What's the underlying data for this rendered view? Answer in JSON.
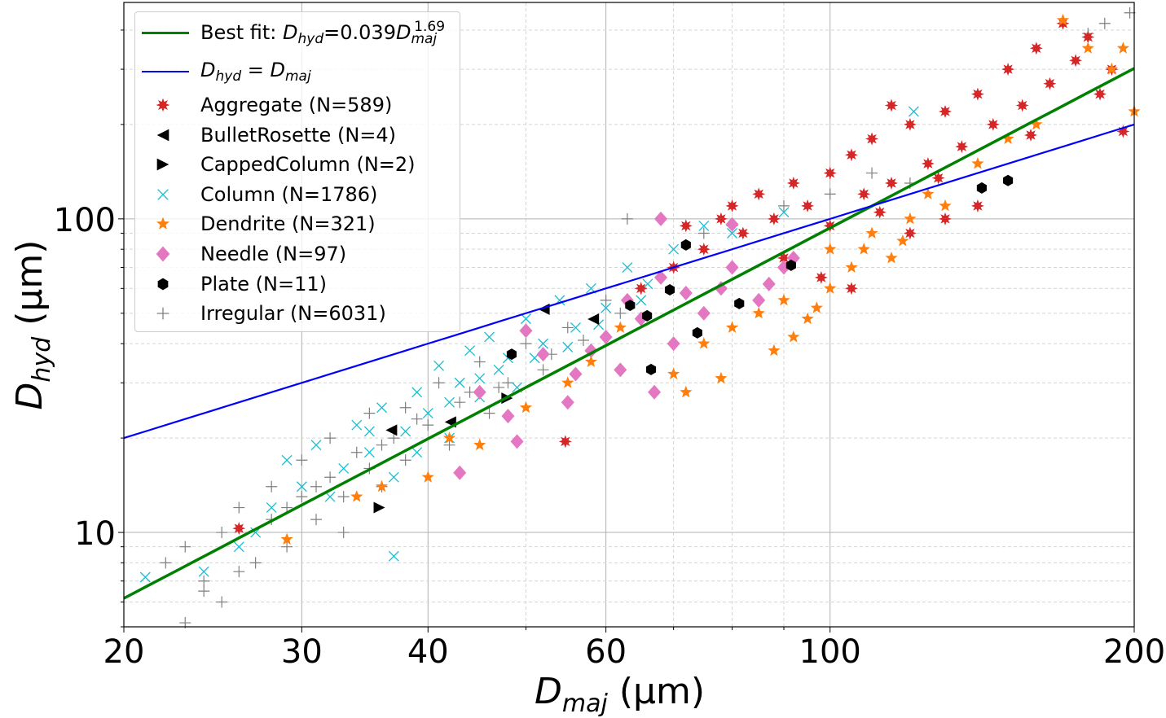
{
  "chart_data": {
    "type": "scatter",
    "xlabel": {
      "main": "D",
      "sub": "maj",
      "unit": "(μm)"
    },
    "ylabel": {
      "main": "D",
      "sub": "hyd",
      "unit": "(μm)"
    },
    "xscale": "log",
    "yscale": "log",
    "xlim": [
      20,
      200
    ],
    "ylim": [
      5,
      490
    ],
    "xticks": [
      20,
      30,
      40,
      60,
      100,
      200
    ],
    "xtick_labels": [
      "20",
      "30",
      "40",
      "60",
      "100",
      "200"
    ],
    "yticks": [
      10,
      100
    ],
    "ytick_labels": [
      "10",
      "100"
    ],
    "grid": true,
    "legend_placement": "top-left",
    "lines": [
      {
        "name": "best_fit",
        "label_prefix": "Best fit: ",
        "label_D": "D",
        "label_hyd": "hyd",
        "label_eq": "=0.039",
        "label_D2": "D",
        "label_maj": "maj",
        "label_exp": "1.69",
        "coef": 0.039,
        "exponent": 1.69,
        "color": "#008000"
      },
      {
        "name": "identity",
        "label_D": "D",
        "label_hyd": "hyd",
        "label_eq": " = ",
        "label_D2": "D",
        "label_maj": "maj",
        "coef": 1,
        "exponent": 1,
        "color": "#0000ff"
      }
    ],
    "series": [
      {
        "name": "Irregular (N=6031)",
        "marker": "plus",
        "color": "#7f7f7f",
        "points": [
          [
            22,
            8
          ],
          [
            23,
            9
          ],
          [
            23,
            5.15
          ],
          [
            24,
            7
          ],
          [
            25,
            10
          ],
          [
            25,
            6
          ],
          [
            26,
            12
          ],
          [
            27,
            8
          ],
          [
            28,
            11
          ],
          [
            28,
            14
          ],
          [
            29,
            9
          ],
          [
            30,
            13
          ],
          [
            30,
            17
          ],
          [
            31,
            11
          ],
          [
            32,
            15
          ],
          [
            32,
            20
          ],
          [
            33,
            13
          ],
          [
            34,
            18
          ],
          [
            35,
            16
          ],
          [
            35,
            24
          ],
          [
            36,
            14
          ],
          [
            37,
            20
          ],
          [
            38,
            25
          ],
          [
            38,
            17
          ],
          [
            40,
            22
          ],
          [
            41,
            30
          ],
          [
            42,
            19
          ],
          [
            44,
            28
          ],
          [
            45,
            35
          ],
          [
            46,
            24
          ],
          [
            48,
            30
          ],
          [
            50,
            40
          ],
          [
            52,
            33
          ],
          [
            55,
            45
          ],
          [
            58,
            38
          ],
          [
            60,
            55
          ],
          [
            62,
            50
          ],
          [
            65,
            60
          ],
          [
            70,
            70
          ],
          [
            75,
            90
          ],
          [
            80,
            95
          ],
          [
            90,
            110
          ],
          [
            100,
            120
          ],
          [
            110,
            140
          ],
          [
            120,
            130
          ],
          [
            187,
            420
          ],
          [
            198,
            454
          ],
          [
            180,
            390
          ],
          [
            24,
            6.5
          ],
          [
            26,
            7.5
          ],
          [
            29,
            12
          ],
          [
            31,
            14
          ],
          [
            33,
            10
          ],
          [
            36,
            19
          ],
          [
            39,
            23
          ],
          [
            43,
            26
          ],
          [
            47,
            29
          ],
          [
            53,
            37
          ],
          [
            57,
            41
          ],
          [
            63,
            100
          ]
        ]
      },
      {
        "name": "Column (N=1786)",
        "marker": "x",
        "color": "#17becf",
        "points": [
          [
            21,
            7.2
          ],
          [
            24,
            7.5
          ],
          [
            26,
            9
          ],
          [
            27,
            10
          ],
          [
            28,
            12
          ],
          [
            29,
            17
          ],
          [
            30,
            14
          ],
          [
            31,
            19
          ],
          [
            32,
            13
          ],
          [
            33,
            16
          ],
          [
            34,
            22
          ],
          [
            35,
            18
          ],
          [
            36,
            25
          ],
          [
            37,
            15
          ],
          [
            37,
            8.4
          ],
          [
            38,
            21
          ],
          [
            39,
            28
          ],
          [
            40,
            24
          ],
          [
            41,
            34
          ],
          [
            42,
            20
          ],
          [
            43,
            30
          ],
          [
            44,
            38
          ],
          [
            45,
            27
          ],
          [
            46,
            42
          ],
          [
            47,
            33
          ],
          [
            48,
            36
          ],
          [
            50,
            48
          ],
          [
            52,
            40
          ],
          [
            54,
            55
          ],
          [
            56,
            45
          ],
          [
            58,
            60
          ],
          [
            60,
            52
          ],
          [
            63,
            70
          ],
          [
            66,
            62
          ],
          [
            70,
            80
          ],
          [
            75,
            95
          ],
          [
            80,
            90
          ],
          [
            90,
            105
          ],
          [
            121,
            220
          ],
          [
            35,
            21
          ],
          [
            39,
            18
          ],
          [
            42,
            26
          ],
          [
            45,
            31
          ],
          [
            49,
            29
          ],
          [
            51,
            36
          ],
          [
            55,
            39
          ],
          [
            59,
            46
          ],
          [
            65,
            55
          ]
        ]
      },
      {
        "name": "Aggregate (N=589)",
        "marker": "starburst",
        "color": "#d62728",
        "points": [
          [
            26,
            10.3
          ],
          [
            54.7,
            19.5
          ],
          [
            65,
            60
          ],
          [
            70,
            70
          ],
          [
            72,
            95
          ],
          [
            75,
            80
          ],
          [
            78,
            100
          ],
          [
            80,
            110
          ],
          [
            82,
            90
          ],
          [
            85,
            120
          ],
          [
            88,
            100
          ],
          [
            90,
            75
          ],
          [
            92,
            130
          ],
          [
            95,
            110
          ],
          [
            100,
            140
          ],
          [
            100,
            95
          ],
          [
            105,
            160
          ],
          [
            108,
            120
          ],
          [
            110,
            180
          ],
          [
            115,
            130
          ],
          [
            120,
            200
          ],
          [
            125,
            150
          ],
          [
            130,
            220
          ],
          [
            135,
            170
          ],
          [
            140,
            250
          ],
          [
            145,
            200
          ],
          [
            150,
            300
          ],
          [
            155,
            230
          ],
          [
            160,
            350
          ],
          [
            165,
            270
          ],
          [
            170,
            420
          ],
          [
            175,
            320
          ],
          [
            180,
            380
          ],
          [
            185,
            250
          ],
          [
            190,
            300
          ],
          [
            195,
            190
          ],
          [
            120,
            90
          ],
          [
            130,
            100
          ],
          [
            140,
            110
          ],
          [
            115,
            230
          ],
          [
            105,
            60
          ],
          [
            98,
            65
          ],
          [
            112,
            105
          ],
          [
            128,
            135
          ],
          [
            158,
            185
          ]
        ]
      },
      {
        "name": "Dendrite (N=321)",
        "marker": "star",
        "color": "#ff7f0e",
        "points": [
          [
            29,
            9.5
          ],
          [
            34,
            13
          ],
          [
            36,
            14
          ],
          [
            40,
            15
          ],
          [
            42,
            20
          ],
          [
            45,
            19
          ],
          [
            50,
            25
          ],
          [
            55,
            30
          ],
          [
            58,
            35
          ],
          [
            62,
            45
          ],
          [
            70,
            32
          ],
          [
            72,
            28
          ],
          [
            75,
            40
          ],
          [
            78,
            31
          ],
          [
            80,
            45
          ],
          [
            85,
            50
          ],
          [
            88,
            38
          ],
          [
            90,
            55
          ],
          [
            95,
            48
          ],
          [
            100,
            60
          ],
          [
            100,
            80
          ],
          [
            105,
            70
          ],
          [
            110,
            90
          ],
          [
            115,
            75
          ],
          [
            120,
            100
          ],
          [
            125,
            120
          ],
          [
            130,
            110
          ],
          [
            140,
            150
          ],
          [
            150,
            180
          ],
          [
            160,
            200
          ],
          [
            170,
            430
          ],
          [
            180,
            350
          ],
          [
            190,
            300
          ],
          [
            195,
            350
          ],
          [
            200,
            220
          ],
          [
            92,
            42
          ],
          [
            97,
            52
          ],
          [
            108,
            80
          ],
          [
            118,
            85
          ]
        ]
      },
      {
        "name": "Needle (N=97)",
        "marker": "diamond",
        "color": "#e377c2",
        "points": [
          [
            43,
            15.5
          ],
          [
            45,
            28
          ],
          [
            48,
            23.5
          ],
          [
            49,
            19.5
          ],
          [
            50,
            44
          ],
          [
            52,
            37
          ],
          [
            55,
            26
          ],
          [
            56,
            32
          ],
          [
            58,
            38
          ],
          [
            60,
            42
          ],
          [
            62,
            33
          ],
          [
            63,
            55
          ],
          [
            65,
            48
          ],
          [
            67,
            28
          ],
          [
            68,
            65
          ],
          [
            68,
            100
          ],
          [
            70,
            40
          ],
          [
            72,
            58
          ],
          [
            75,
            50
          ],
          [
            78,
            60
          ],
          [
            80,
            70
          ],
          [
            80,
            96
          ],
          [
            85,
            55
          ],
          [
            87,
            62
          ],
          [
            90,
            70
          ],
          [
            92,
            75
          ]
        ]
      },
      {
        "name": "Plate (N=11)",
        "marker": "hexagon",
        "color": "#000000",
        "points": [
          [
            48.4,
            37.0
          ],
          [
            72.0,
            82.6
          ],
          [
            63.4,
            53.0
          ],
          [
            65.9,
            49.1
          ],
          [
            69.4,
            59.4
          ],
          [
            66.5,
            33.1
          ],
          [
            73.9,
            43.3
          ],
          [
            81.3,
            53.7
          ],
          [
            91.5,
            71.1
          ],
          [
            141.3,
            125.5
          ],
          [
            150,
            132.5
          ]
        ]
      },
      {
        "name": "BulletRosette (N=4)",
        "marker": "triangle-left",
        "color": "#000000",
        "points": [
          [
            36.8,
            21.2
          ],
          [
            42.1,
            22.5
          ],
          [
            52.1,
            51.5
          ],
          [
            58.3,
            47.9
          ]
        ]
      },
      {
        "name": "CappedColumn (N=2)",
        "marker": "triangle-right",
        "color": "#000000",
        "points": [
          [
            35.8,
            12.0
          ],
          [
            47.9,
            26.8
          ]
        ]
      }
    ],
    "legend_order": [
      "Aggregate (N=589)",
      "BulletRosette (N=4)",
      "CappedColumn (N=2)",
      "Column (N=1786)",
      "Dendrite (N=321)",
      "Needle (N=97)",
      "Plate (N=11)",
      "Irregular (N=6031)"
    ]
  }
}
